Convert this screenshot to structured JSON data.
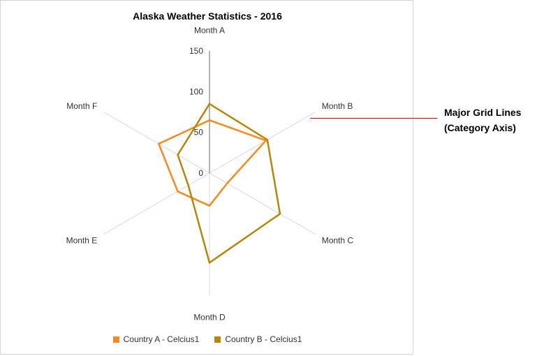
{
  "chart_data": {
    "type": "radar",
    "title": "Alaska Weather Statistics - 2016",
    "categories": [
      "Month A",
      "Month B",
      "Month C",
      "Month D",
      "Month E",
      "Month F"
    ],
    "radial_axis": {
      "min": 0,
      "max": 150,
      "ticks": [
        0,
        50,
        100,
        150
      ]
    },
    "series": [
      {
        "name": "Country A - Celcius1",
        "color": "#f58a1f",
        "values": [
          65,
          80,
          25,
          40,
          45,
          72
        ]
      },
      {
        "name": "Country B - Celcius1",
        "color": "#b8860b",
        "values": [
          85,
          82,
          100,
          110,
          30,
          45
        ]
      }
    ],
    "legend_position": "bottom",
    "grid": true
  },
  "annotation": {
    "line1": "Major Grid Lines",
    "line2": "(Category Axis)",
    "color": "#e00000"
  }
}
